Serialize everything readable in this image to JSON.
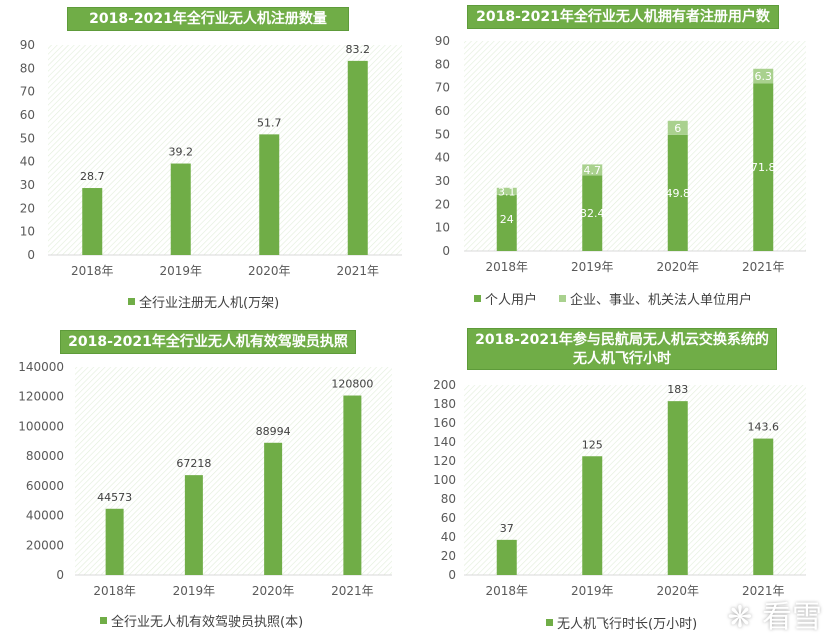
{
  "colors": {
    "bar": "#70ad47",
    "bar_light": "#a9d18e",
    "title_bg": "#70ad47"
  },
  "watermark": "❋ 看雪",
  "chart_data": [
    {
      "type": "bar",
      "title": "2018-2021年全行业无人机注册数量",
      "categories": [
        "2018年",
        "2019年",
        "2020年",
        "2021年"
      ],
      "series": [
        {
          "name": "全行业注册无人机(万架)",
          "values": [
            28.7,
            39.2,
            51.7,
            83.2
          ]
        }
      ],
      "value_labels": [
        "28.7",
        "39.2",
        "51.7",
        "83.2"
      ],
      "ylim": [
        0,
        90
      ],
      "yticks": [
        0,
        10,
        20,
        30,
        40,
        50,
        60,
        70,
        80,
        90
      ],
      "legend": "bottom"
    },
    {
      "type": "bar",
      "stacked": true,
      "title": "2018-2021年全行业无人机拥有者注册用户数",
      "categories": [
        "2018年",
        "2019年",
        "2020年",
        "2021年"
      ],
      "series": [
        {
          "name": "个人用户",
          "values": [
            24,
            32.4,
            49.8,
            71.8
          ],
          "labels": [
            "24",
            "32.4",
            "49.8",
            "71.8"
          ]
        },
        {
          "name": "企业、事业、机关法人单位用户",
          "values": [
            3.1,
            4.7,
            6,
            6.3
          ],
          "labels": [
            "3.1",
            "4.7",
            "6",
            "6.3"
          ]
        }
      ],
      "ylim": [
        0,
        90
      ],
      "yticks": [
        0,
        10,
        20,
        30,
        40,
        50,
        60,
        70,
        80,
        90
      ],
      "legend": "bottom"
    },
    {
      "type": "bar",
      "title": "2018-2021年全行业无人机有效驾驶员执照",
      "categories": [
        "2018年",
        "2019年",
        "2020年",
        "2021年"
      ],
      "series": [
        {
          "name": "全行业无人机有效驾驶员执照(本)",
          "values": [
            44573,
            67218,
            88994,
            120800
          ]
        }
      ],
      "value_labels": [
        "44573",
        "67218",
        "88994",
        "120800"
      ],
      "ylim": [
        0,
        140000
      ],
      "yticks": [
        0,
        20000,
        40000,
        60000,
        80000,
        100000,
        120000,
        140000
      ],
      "legend": "bottom"
    },
    {
      "type": "bar",
      "title": [
        "2018-2021年参与民航局无人机云交换系统的",
        "无人机飞行小时"
      ],
      "categories": [
        "2018年",
        "2019年",
        "2020年",
        "2021年"
      ],
      "series": [
        {
          "name": "无人机飞行时长(万小时)",
          "values": [
            37,
            125,
            183,
            143.6
          ]
        }
      ],
      "value_labels": [
        "37",
        "125",
        "183",
        "143.6"
      ],
      "ylim": [
        0,
        200
      ],
      "yticks": [
        0,
        20,
        40,
        60,
        80,
        100,
        120,
        140,
        160,
        180,
        200
      ],
      "legend": "bottom"
    }
  ]
}
